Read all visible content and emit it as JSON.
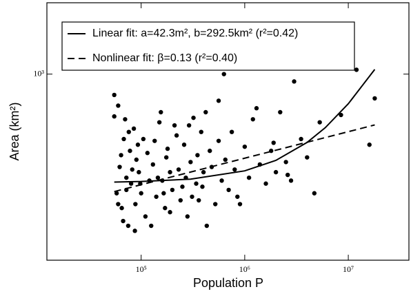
{
  "chart_data": {
    "type": "scatter",
    "xlabel": "Population P",
    "ylabel": "Area (km²)",
    "xscale": "log",
    "yscale": "log",
    "xlim": [
      12300,
      38500000
    ],
    "ylim": [
      122,
      2240
    ],
    "xticks": [
      {
        "value": 100000,
        "label": "10⁵"
      },
      {
        "value": 1000000,
        "label": "10⁶"
      },
      {
        "value": 10000000,
        "label": "10⁷"
      }
    ],
    "yticks": [
      {
        "value": 1000,
        "label": "10³"
      }
    ],
    "legend": "top-left",
    "series": [
      {
        "kind": "scatter",
        "color": "#000000",
        "x": [
          55000,
          58000,
          60000,
          62000,
          65000,
          68000,
          70000,
          72000,
          75000,
          78000,
          80000,
          85000,
          88000,
          90000,
          95000,
          100000,
          105000,
          110000,
          115000,
          120000,
          55000,
          60000,
          64000,
          67000,
          72000,
          76000,
          82000,
          87000,
          93000,
          98000,
          130000,
          140000,
          150000,
          160000,
          170000,
          180000,
          190000,
          200000,
          220000,
          240000,
          125000,
          135000,
          145000,
          155000,
          165000,
          175000,
          190000,
          210000,
          230000,
          250000,
          260000,
          280000,
          300000,
          320000,
          340000,
          360000,
          380000,
          400000,
          430000,
          460000,
          270000,
          290000,
          310000,
          350000,
          390000,
          420000,
          480000,
          520000,
          560000,
          600000,
          650000,
          700000,
          750000,
          800000,
          900000,
          1000000,
          1100000,
          1200000,
          1400000,
          1600000,
          1800000,
          2000000,
          2200000,
          2500000,
          2800000,
          3000000,
          3500000,
          4000000,
          4700000,
          5300000,
          560000,
          630000,
          850000,
          1300000,
          1900000,
          2600000,
          8500000,
          12000000,
          18000000,
          16000000
        ],
        "values": [
          790,
          260,
          700,
          350,
          220,
          480,
          600,
          310,
          180,
          420,
          290,
          540,
          230,
          380,
          330,
          260,
          480,
          200,
          410,
          300,
          620,
          230,
          400,
          190,
          270,
          520,
          340,
          170,
          450,
          290,
          360,
          250,
          580,
          300,
          220,
          430,
          330,
          270,
          500,
          240,
          180,
          470,
          310,
          650,
          260,
          390,
          210,
          560,
          340,
          280,
          450,
          200,
          370,
          610,
          290,
          240,
          520,
          330,
          180,
          420,
          310,
          560,
          250,
          400,
          280,
          650,
          350,
          230,
          470,
          300,
          380,
          270,
          520,
          340,
          230,
          440,
          310,
          600,
          360,
          290,
          420,
          330,
          650,
          370,
          300,
          920,
          480,
          390,
          260,
          580,
          740,
          1000,
          250,
          680,
          460,
          320,
          630,
          1050,
          760,
          450
        ]
      },
      {
        "kind": "line",
        "dash": false,
        "color": "#000000",
        "name": "Linear fit: a=42.3m², b=292.5km² (r²=0.42)",
        "x": [
          55000,
          100000,
          300000,
          1000000,
          2000000,
          4000000,
          6000000,
          10000000,
          18000000
        ],
        "values": [
          295,
          297,
          305,
          335,
          377,
          462,
          546,
          715,
          1054
        ]
      },
      {
        "kind": "line",
        "dash": true,
        "color": "#000000",
        "name": "Nonlinear fit: β=0.13 (r²=0.40)",
        "x": [
          55000,
          18000000
        ],
        "values": [
          265,
          563
        ]
      }
    ]
  }
}
